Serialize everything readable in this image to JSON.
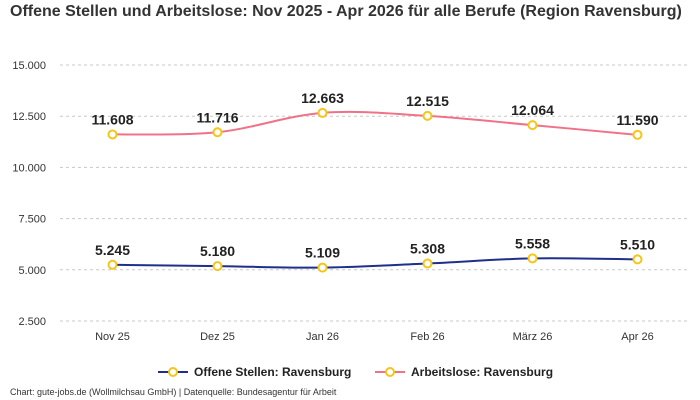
{
  "chart_data": {
    "type": "line",
    "title": "Offene Stellen und Arbeitslose: Nov 2025 - Apr 2026 für alle Berufe (Region Ravensburg)",
    "categories": [
      "Nov 25",
      "Dez 25",
      "Jan 26",
      "Feb 26",
      "März 26",
      "Apr 26"
    ],
    "y_ticks": [
      2500,
      5000,
      7500,
      10000,
      12500,
      15000
    ],
    "y_tick_labels": [
      "2.500",
      "5.000",
      "7.500",
      "10.000",
      "12.500",
      "15.000"
    ],
    "ylim": [
      2500,
      15000
    ],
    "grid": true,
    "legend_position": "bottom",
    "series": [
      {
        "name": "Offene Stellen: Ravensburg",
        "values": [
          5245,
          5180,
          5109,
          5308,
          5558,
          5510
        ],
        "labels": [
          "5.245",
          "5.180",
          "5.109",
          "5.308",
          "5.558",
          "5.510"
        ],
        "color": "#1f2f8a"
      },
      {
        "name": "Arbeitslose: Ravensburg",
        "values": [
          11608,
          11716,
          12663,
          12515,
          12064,
          11590
        ],
        "labels": [
          "11.608",
          "11.716",
          "12.663",
          "12.515",
          "12.064",
          "11.590"
        ],
        "color": "#f07288"
      }
    ],
    "marker_color": "#f5c518",
    "credits": "Chart: gute-jobs.de (Wollmilchsau GmbH) | Datenquelle: Bundesagentur für Arbeit"
  }
}
